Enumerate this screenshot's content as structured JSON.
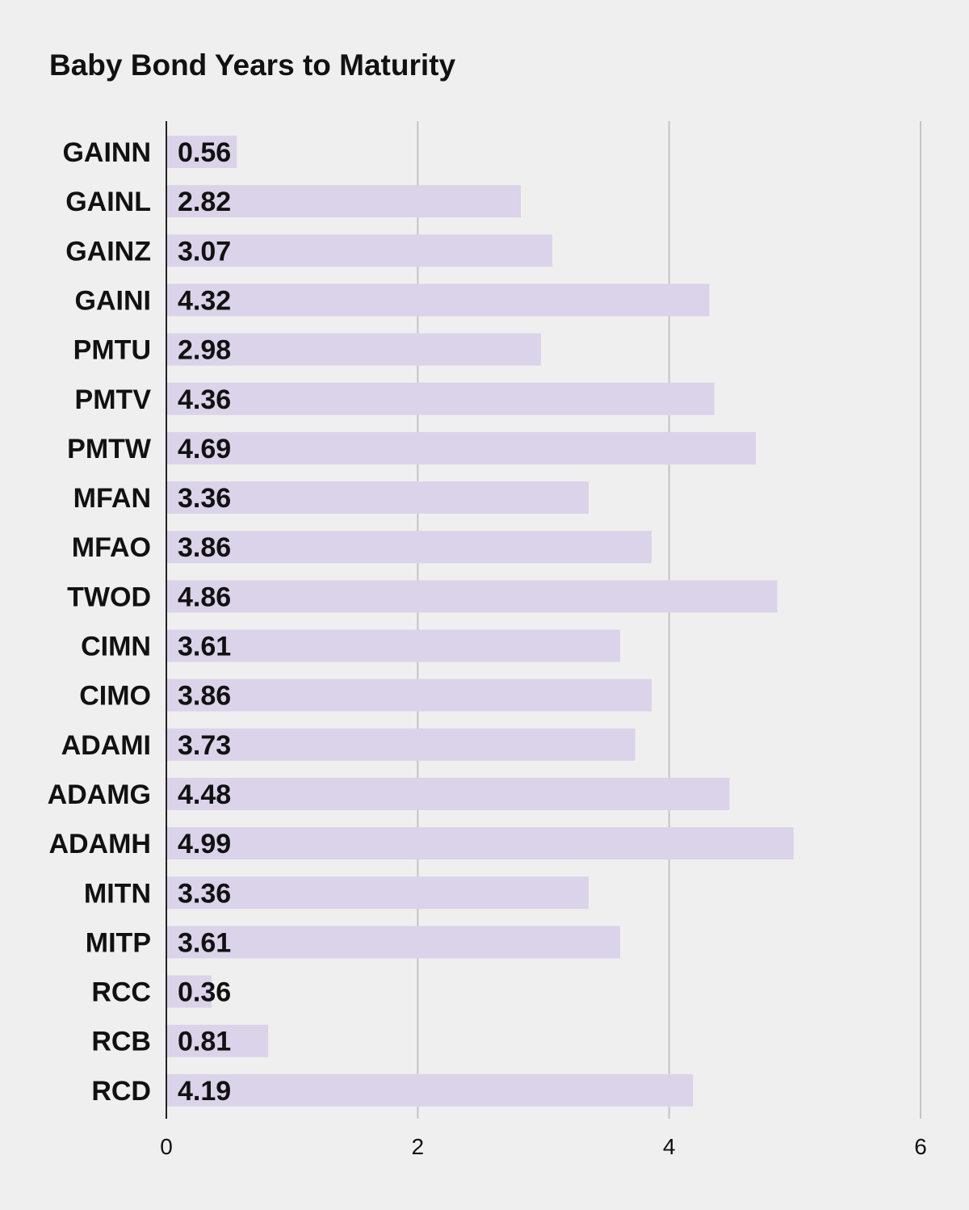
{
  "chart_data": {
    "type": "bar",
    "orientation": "horizontal",
    "title": "Baby Bond Years to Maturity",
    "xlabel": "",
    "ylabel": "",
    "categories": [
      "GAINN",
      "GAINL",
      "GAINZ",
      "GAINI",
      "PMTU",
      "PMTV",
      "PMTW",
      "MFAN",
      "MFAO",
      "TWOD",
      "CIMN",
      "CIMO",
      "ADAMI",
      "ADAMG",
      "ADAMH",
      "MITN",
      "MITP",
      "RCC",
      "RCB",
      "RCD"
    ],
    "values": [
      0.56,
      2.82,
      3.07,
      4.32,
      2.98,
      4.36,
      4.69,
      3.36,
      3.86,
      4.86,
      3.61,
      3.86,
      3.73,
      4.48,
      4.99,
      3.36,
      3.61,
      0.36,
      0.81,
      4.19
    ],
    "value_labels": [
      "0.56",
      "2.82",
      "3.07",
      "4.32",
      "2.98",
      "4.36",
      "4.69",
      "3.36",
      "3.86",
      "4.86",
      "3.61",
      "3.86",
      "3.73",
      "4.48",
      "4.99",
      "3.36",
      "3.61",
      "0.36",
      "0.81",
      "4.19"
    ],
    "xlim": [
      0,
      6
    ],
    "x_ticks": [
      "0",
      "2",
      "4",
      "6"
    ],
    "grid": true,
    "legend": "none",
    "bar_color": "#dbd3e9",
    "background_color": "#efefef"
  }
}
